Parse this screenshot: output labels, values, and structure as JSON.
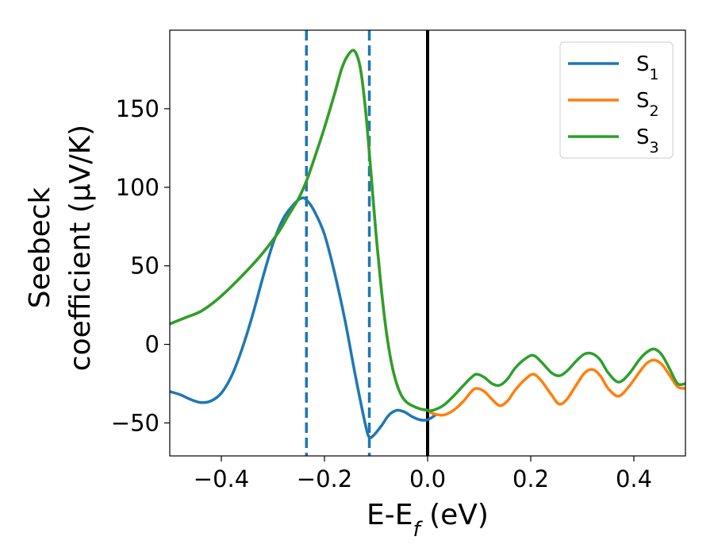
{
  "chart_data": {
    "type": "line",
    "xlabel": {
      "main": "E-E",
      "sub": "f",
      "unit": " (eV)"
    },
    "ylabel": {
      "line1": "Seebeck",
      "line2": "coefficient  (μV/K)"
    },
    "xlim": [
      -0.5,
      0.5
    ],
    "ylim": [
      -71,
      200
    ],
    "xticks": [
      -0.4,
      -0.2,
      0.0,
      0.2,
      0.4
    ],
    "xtick_labels": [
      "−0.4",
      "−0.2",
      "0.0",
      "0.2",
      "0.4"
    ],
    "yticks": [
      -50,
      0,
      50,
      100,
      150
    ],
    "ytick_labels": [
      "−50",
      "0",
      "50",
      "100",
      "150"
    ],
    "grid": false,
    "legend_position": "top-right",
    "vlines": [
      {
        "x": -0.235,
        "style": "dashed",
        "color": "#1f77b4"
      },
      {
        "x": -0.113,
        "style": "dashed",
        "color": "#1f77b4"
      },
      {
        "x": 0.0,
        "style": "solid",
        "color": "#000000"
      }
    ],
    "series": [
      {
        "name": "S",
        "sub": "1",
        "color": "#1f77b4",
        "points": [
          [
            -0.5,
            -30
          ],
          [
            -0.48,
            -32
          ],
          [
            -0.46,
            -35
          ],
          [
            -0.44,
            -37
          ],
          [
            -0.42,
            -36
          ],
          [
            -0.4,
            -31
          ],
          [
            -0.38,
            -20
          ],
          [
            -0.36,
            -3
          ],
          [
            -0.34,
            18
          ],
          [
            -0.32,
            42
          ],
          [
            -0.3,
            64
          ],
          [
            -0.28,
            80
          ],
          [
            -0.26,
            89
          ],
          [
            -0.245,
            93
          ],
          [
            -0.235,
            92
          ],
          [
            -0.22,
            85
          ],
          [
            -0.2,
            70
          ],
          [
            -0.18,
            45
          ],
          [
            -0.16,
            15
          ],
          [
            -0.14,
            -20
          ],
          [
            -0.12,
            -52
          ],
          [
            -0.113,
            -59
          ],
          [
            -0.105,
            -58
          ],
          [
            -0.09,
            -52
          ],
          [
            -0.075,
            -45
          ],
          [
            -0.06,
            -42
          ],
          [
            -0.045,
            -43
          ],
          [
            -0.03,
            -46
          ],
          [
            -0.015,
            -48
          ],
          [
            0.0,
            -48
          ],
          [
            0.015,
            -45
          ]
        ]
      },
      {
        "name": "S",
        "sub": "2",
        "color": "#ff7f0e",
        "points": [
          [
            -0.5,
            13
          ],
          [
            -0.47,
            17
          ],
          [
            -0.44,
            21
          ],
          [
            -0.41,
            28
          ],
          [
            -0.38,
            37
          ],
          [
            -0.35,
            47
          ],
          [
            -0.32,
            58
          ],
          [
            -0.29,
            71
          ],
          [
            -0.27,
            82
          ],
          [
            -0.25,
            93
          ],
          [
            -0.235,
            104
          ],
          [
            -0.22,
            118
          ],
          [
            -0.2,
            138
          ],
          [
            -0.18,
            160
          ],
          [
            -0.165,
            177
          ],
          [
            -0.15,
            186
          ],
          [
            -0.14,
            186
          ],
          [
            -0.13,
            175
          ],
          [
            -0.12,
            148
          ],
          [
            -0.11,
            110
          ],
          [
            -0.1,
            70
          ],
          [
            -0.09,
            36
          ],
          [
            -0.08,
            8
          ],
          [
            -0.07,
            -12
          ],
          [
            -0.06,
            -25
          ],
          [
            -0.05,
            -33
          ],
          [
            -0.04,
            -37
          ],
          [
            -0.03,
            -39
          ],
          [
            -0.015,
            -41
          ],
          [
            0.0,
            -42
          ],
          [
            0.01,
            -44
          ],
          [
            0.03,
            -45
          ],
          [
            0.05,
            -42
          ],
          [
            0.07,
            -36
          ],
          [
            0.085,
            -30
          ],
          [
            0.095,
            -28
          ],
          [
            0.11,
            -30
          ],
          [
            0.125,
            -35
          ],
          [
            0.14,
            -39
          ],
          [
            0.155,
            -36
          ],
          [
            0.17,
            -29
          ],
          [
            0.19,
            -22
          ],
          [
            0.205,
            -19
          ],
          [
            0.22,
            -23
          ],
          [
            0.24,
            -32
          ],
          [
            0.255,
            -38
          ],
          [
            0.27,
            -35
          ],
          [
            0.29,
            -25
          ],
          [
            0.305,
            -18
          ],
          [
            0.32,
            -16
          ],
          [
            0.335,
            -20
          ],
          [
            0.35,
            -28
          ],
          [
            0.37,
            -33
          ],
          [
            0.39,
            -27
          ],
          [
            0.41,
            -18
          ],
          [
            0.425,
            -12
          ],
          [
            0.44,
            -10
          ],
          [
            0.455,
            -13
          ],
          [
            0.47,
            -20
          ],
          [
            0.485,
            -27
          ],
          [
            0.5,
            -28
          ]
        ]
      },
      {
        "name": "S",
        "sub": "3",
        "color": "#2ca02c",
        "points": [
          [
            -0.5,
            13
          ],
          [
            -0.47,
            17
          ],
          [
            -0.44,
            21
          ],
          [
            -0.41,
            28
          ],
          [
            -0.38,
            37
          ],
          [
            -0.35,
            47
          ],
          [
            -0.32,
            58
          ],
          [
            -0.29,
            71
          ],
          [
            -0.27,
            82
          ],
          [
            -0.25,
            93
          ],
          [
            -0.235,
            104
          ],
          [
            -0.22,
            118
          ],
          [
            -0.2,
            138
          ],
          [
            -0.18,
            160
          ],
          [
            -0.165,
            177
          ],
          [
            -0.15,
            186
          ],
          [
            -0.14,
            186
          ],
          [
            -0.13,
            175
          ],
          [
            -0.12,
            148
          ],
          [
            -0.11,
            110
          ],
          [
            -0.1,
            70
          ],
          [
            -0.09,
            36
          ],
          [
            -0.08,
            8
          ],
          [
            -0.07,
            -12
          ],
          [
            -0.06,
            -25
          ],
          [
            -0.05,
            -33
          ],
          [
            -0.04,
            -37
          ],
          [
            -0.03,
            -39
          ],
          [
            -0.015,
            -41
          ],
          [
            0.0,
            -42
          ],
          [
            0.01,
            -42
          ],
          [
            0.03,
            -39
          ],
          [
            0.05,
            -33
          ],
          [
            0.07,
            -26
          ],
          [
            0.085,
            -21
          ],
          [
            0.095,
            -19
          ],
          [
            0.11,
            -21
          ],
          [
            0.125,
            -25
          ],
          [
            0.14,
            -26
          ],
          [
            0.155,
            -22
          ],
          [
            0.17,
            -15
          ],
          [
            0.19,
            -9
          ],
          [
            0.205,
            -7
          ],
          [
            0.22,
            -11
          ],
          [
            0.24,
            -18
          ],
          [
            0.255,
            -20
          ],
          [
            0.27,
            -17
          ],
          [
            0.29,
            -10
          ],
          [
            0.305,
            -6
          ],
          [
            0.32,
            -6
          ],
          [
            0.335,
            -10
          ],
          [
            0.35,
            -18
          ],
          [
            0.37,
            -24
          ],
          [
            0.39,
            -19
          ],
          [
            0.41,
            -10
          ],
          [
            0.425,
            -5
          ],
          [
            0.44,
            -3
          ],
          [
            0.455,
            -7
          ],
          [
            0.47,
            -16
          ],
          [
            0.485,
            -25
          ],
          [
            0.5,
            -25
          ]
        ]
      }
    ]
  }
}
